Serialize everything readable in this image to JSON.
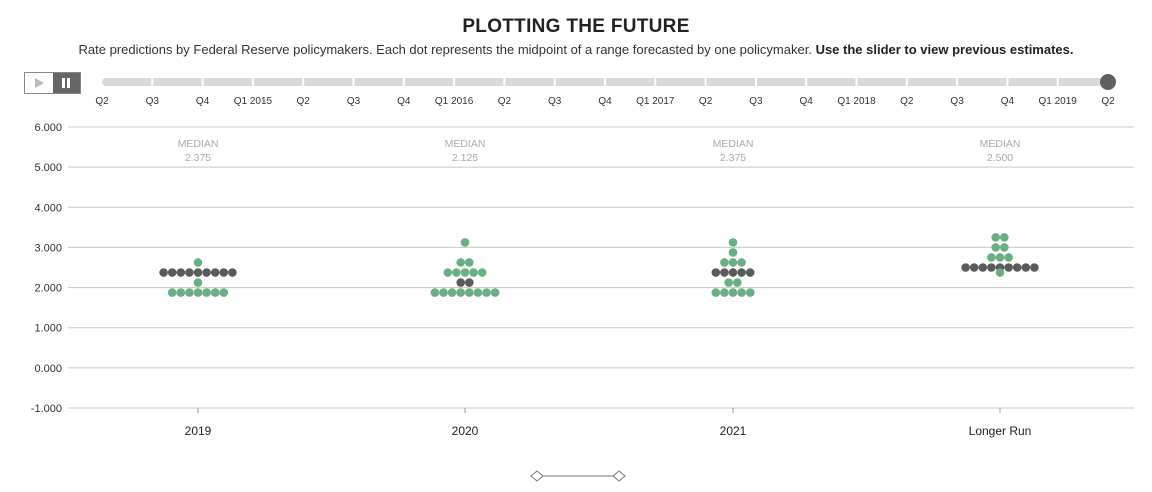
{
  "header": {
    "title": "PLOTTING THE FUTURE",
    "subtitle_text": "Rate predictions by Federal Reserve policymakers. Each dot represents the midpoint of a range forecasted by one policymaker.",
    "subtitle_bold": "Use the slider to view previous estimates."
  },
  "controls": {
    "play_icon": "play-icon",
    "pause_icon": "pause-icon",
    "active": "pause"
  },
  "timeline": {
    "labels": [
      "Q2",
      "Q3",
      "Q4",
      "Q1 2015",
      "Q2",
      "Q3",
      "Q4",
      "Q1 2016",
      "Q2",
      "Q3",
      "Q4",
      "Q1 2017",
      "Q2",
      "Q3",
      "Q4",
      "Q1 2018",
      "Q2",
      "Q3",
      "Q4",
      "Q1 2019",
      "Q2"
    ],
    "selected": "Q2"
  },
  "colors": {
    "green": "#6aaf84",
    "gray": "#5a5a5a",
    "gridline": "#c8c8c8",
    "median_text": "#aaaaaa",
    "track": "#d9d9d9"
  },
  "chart_data": {
    "type": "scatter",
    "y_ticks": [
      "6.000",
      "5.000",
      "4.000",
      "3.000",
      "2.000",
      "1.000",
      "0.000",
      "-1.000"
    ],
    "ylim": [
      -1,
      6
    ],
    "grid": true,
    "median_label": "MEDIAN",
    "categories": [
      {
        "name": "2019",
        "median": "2.375",
        "rows": [
          {
            "value": 2.625,
            "count": 1,
            "median": false
          },
          {
            "value": 2.375,
            "count": 9,
            "median": true
          },
          {
            "value": 2.125,
            "count": 1,
            "median": false
          },
          {
            "value": 1.875,
            "count": 7,
            "median": false
          }
        ]
      },
      {
        "name": "2020",
        "median": "2.125",
        "rows": [
          {
            "value": 3.125,
            "count": 1,
            "median": false
          },
          {
            "value": 2.625,
            "count": 2,
            "median": false
          },
          {
            "value": 2.375,
            "count": 5,
            "median": false
          },
          {
            "value": 2.125,
            "count": 2,
            "median": true
          },
          {
            "value": 1.875,
            "count": 8,
            "median": false
          }
        ]
      },
      {
        "name": "2021",
        "median": "2.375",
        "rows": [
          {
            "value": 3.125,
            "count": 1,
            "median": false
          },
          {
            "value": 2.875,
            "count": 1,
            "median": false
          },
          {
            "value": 2.625,
            "count": 3,
            "median": false
          },
          {
            "value": 2.375,
            "count": 5,
            "median": true
          },
          {
            "value": 2.125,
            "count": 2,
            "median": false
          },
          {
            "value": 1.875,
            "count": 5,
            "median": false
          }
        ]
      },
      {
        "name": "Longer Run",
        "median": "2.500",
        "rows": [
          {
            "value": 3.25,
            "count": 2,
            "median": false
          },
          {
            "value": 3.0,
            "count": 2,
            "median": false
          },
          {
            "value": 2.75,
            "count": 3,
            "median": false
          },
          {
            "value": 2.5,
            "count": 9,
            "median": true
          },
          {
            "value": 2.375,
            "count": 1,
            "median": false
          }
        ]
      }
    ]
  }
}
